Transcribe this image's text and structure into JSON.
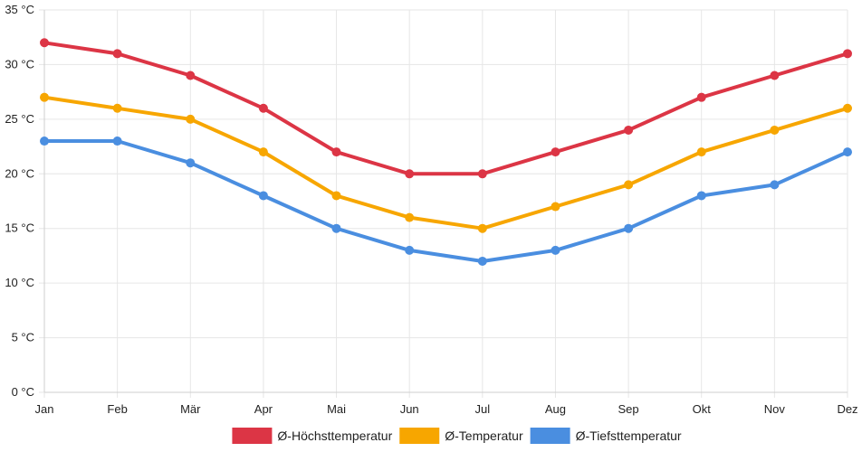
{
  "chart_data": {
    "type": "line",
    "title": "",
    "xlabel": "",
    "ylabel": "",
    "categories": [
      "Jan",
      "Feb",
      "Mär",
      "Apr",
      "Mai",
      "Jun",
      "Jul",
      "Aug",
      "Sep",
      "Okt",
      "Nov",
      "Dez"
    ],
    "ylim": [
      0,
      35
    ],
    "yticks": [
      0,
      5,
      10,
      15,
      20,
      25,
      30,
      35
    ],
    "yunit": " °C",
    "yticklabels": [
      "0 °C",
      "5 °C",
      "10 °C",
      "15 °C",
      "20 °C",
      "25 °C",
      "30 °C",
      "35 °C"
    ],
    "grid": true,
    "legend_position": "bottom",
    "series": [
      {
        "name": "Ø-Höchsttemperatur",
        "color": "#dc3545",
        "values": [
          32,
          31,
          29,
          26,
          22,
          20,
          20,
          22,
          24,
          27,
          29,
          31
        ]
      },
      {
        "name": "Ø-Temperatur",
        "color": "#f7a600",
        "values": [
          27,
          26,
          25,
          22,
          18,
          16,
          15,
          17,
          19,
          22,
          24,
          26
        ]
      },
      {
        "name": "Ø-Tiefsttemperatur",
        "color": "#4a8ee0",
        "values": [
          23,
          23,
          21,
          18,
          15,
          13,
          12,
          13,
          15,
          18,
          19,
          22
        ]
      }
    ]
  }
}
